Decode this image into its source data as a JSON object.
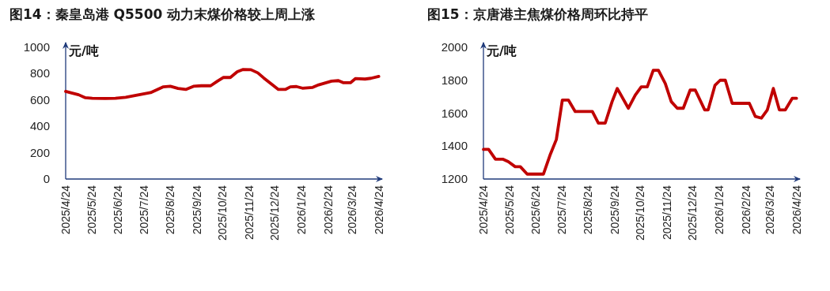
{
  "chart_data": [
    {
      "type": "line",
      "title": "图14：秦皇岛港 Q5500 动力末煤价格较上周上涨",
      "ylabel": "元/吨",
      "x": [
        "2025-04-24",
        "2025-04-30",
        "2025-05-09",
        "2025-05-17",
        "2025-05-25",
        "2025-06-09",
        "2025-06-21",
        "2025-07-03",
        "2025-07-15",
        "2025-08-01",
        "2025-08-09",
        "2025-08-16",
        "2025-08-24",
        "2025-09-02",
        "2025-09-11",
        "2025-09-20",
        "2025-09-29",
        "2025-10-10",
        "2025-10-18",
        "2025-10-25",
        "2025-11-02",
        "2025-11-10",
        "2025-11-17",
        "2025-11-26",
        "2025-12-04",
        "2025-12-11",
        "2025-12-21",
        "2025-12-28",
        "2026-01-05",
        "2026-01-11",
        "2026-01-18",
        "2026-01-25",
        "2026-02-06",
        "2026-02-13",
        "2026-02-28",
        "2026-03-08",
        "2026-03-14",
        "2026-03-22",
        "2026-03-28",
        "2026-04-08",
        "2026-04-15",
        "2026-04-24"
      ],
      "series": [
        {
          "color": "#c00000",
          "values": [
            665,
            655,
            640,
            617,
            613,
            611,
            613,
            621,
            636,
            656,
            680,
            700,
            704,
            688,
            680,
            704,
            708,
            708,
            743,
            771,
            771,
            814,
            832,
            830,
            806,
            767,
            715,
            680,
            680,
            700,
            702,
            690,
            696,
            715,
            743,
            747,
            731,
            731,
            763,
            759,
            765,
            779
          ]
        }
      ],
      "xlim": [
        "2025-04-24",
        "2026-04-28"
      ],
      "xticks": [
        {
          "value": "2025-04-24",
          "label": "2025/4/24"
        },
        {
          "value": "2025-05-24",
          "label": "2025/5/24"
        },
        {
          "value": "2025-06-24",
          "label": "2025/6/24"
        },
        {
          "value": "2025-07-24",
          "label": "2025/7/24"
        },
        {
          "value": "2025-08-24",
          "label": "2025/8/24"
        },
        {
          "value": "2025-09-24",
          "label": "2025/9/24"
        },
        {
          "value": "2025-10-24",
          "label": "2025/10/24"
        },
        {
          "value": "2025-11-24",
          "label": "2025/11/24"
        },
        {
          "value": "2025-12-24",
          "label": "2025/12/24"
        },
        {
          "value": "2026-01-24",
          "label": "2026/1/24"
        },
        {
          "value": "2026-02-24",
          "label": "2026/2/24"
        },
        {
          "value": "2026-03-24",
          "label": "2026/3/24"
        },
        {
          "value": "2026-04-24",
          "label": "2026/4/24"
        }
      ],
      "ylim": [
        0,
        1000
      ],
      "yticks": [
        0,
        200,
        400,
        600,
        800,
        1000
      ]
    },
    {
      "type": "line",
      "title": "图15：京唐港主焦煤价格周环比持平",
      "ylabel": "元/吨",
      "x": [
        "2025-04-24",
        "2025-04-30",
        "2025-05-08",
        "2025-05-17",
        "2025-05-23",
        "2025-05-31",
        "2025-06-06",
        "2025-06-14",
        "2025-07-03",
        "2025-07-11",
        "2025-07-18",
        "2025-07-25",
        "2025-08-01",
        "2025-08-09",
        "2025-08-29",
        "2025-09-05",
        "2025-09-13",
        "2025-09-21",
        "2025-09-27",
        "2025-10-10",
        "2025-10-18",
        "2025-10-25",
        "2025-11-01",
        "2025-11-08",
        "2025-11-14",
        "2025-11-22",
        "2025-11-29",
        "2025-12-06",
        "2025-12-13",
        "2025-12-21",
        "2025-12-27",
        "2026-01-07",
        "2026-01-11",
        "2026-01-19",
        "2026-01-25",
        "2026-01-31",
        "2026-02-08",
        "2026-02-28",
        "2026-03-07",
        "2026-03-14",
        "2026-03-21",
        "2026-03-28",
        "2026-04-04",
        "2026-04-11",
        "2026-04-19",
        "2026-04-24"
      ],
      "series": [
        {
          "color": "#c00000",
          "values": [
            1380,
            1380,
            1320,
            1320,
            1305,
            1275,
            1275,
            1230,
            1230,
            1350,
            1440,
            1680,
            1680,
            1610,
            1610,
            1540,
            1540,
            1670,
            1750,
            1630,
            1710,
            1760,
            1760,
            1860,
            1860,
            1780,
            1670,
            1630,
            1630,
            1740,
            1740,
            1620,
            1620,
            1770,
            1800,
            1800,
            1660,
            1660,
            1580,
            1570,
            1620,
            1750,
            1620,
            1620,
            1690,
            1690
          ]
        }
      ],
      "xlim": [
        "2025-04-24",
        "2026-04-28"
      ],
      "xticks": [
        {
          "value": "2025-04-24",
          "label": "2025/4/24"
        },
        {
          "value": "2025-05-24",
          "label": "2025/5/24"
        },
        {
          "value": "2025-06-24",
          "label": "2025/6/24"
        },
        {
          "value": "2025-07-24",
          "label": "2025/7/24"
        },
        {
          "value": "2025-08-24",
          "label": "2025/8/24"
        },
        {
          "value": "2025-09-24",
          "label": "2025/9/24"
        },
        {
          "value": "2025-10-24",
          "label": "2025/10/24"
        },
        {
          "value": "2025-11-24",
          "label": "2025/11/24"
        },
        {
          "value": "2025-12-24",
          "label": "2025/12/24"
        },
        {
          "value": "2026-01-24",
          "label": "2026/1/24"
        },
        {
          "value": "2026-02-24",
          "label": "2026/2/24"
        },
        {
          "value": "2026-03-24",
          "label": "2026/3/24"
        },
        {
          "value": "2026-04-24",
          "label": "2026/4/24"
        }
      ],
      "ylim": [
        1200,
        2000
      ],
      "yticks": [
        1200,
        1400,
        1600,
        1800,
        2000
      ]
    }
  ]
}
